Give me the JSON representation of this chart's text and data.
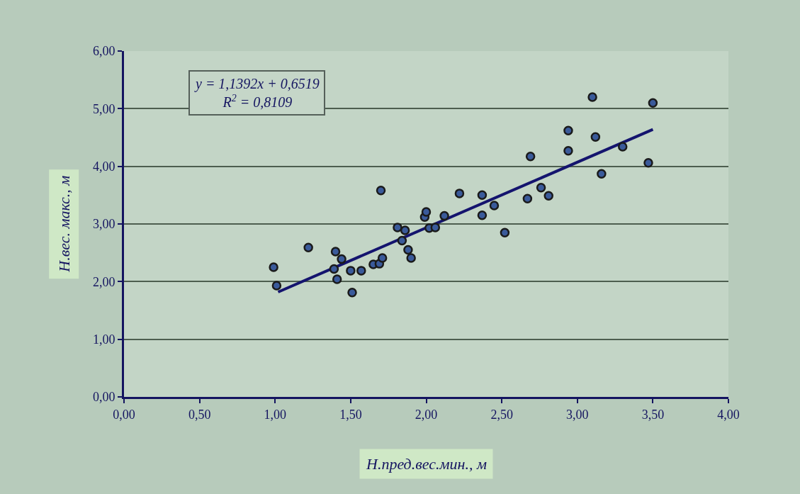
{
  "chart_data": {
    "type": "scatter",
    "xlabel": "Н.пред.вес.мин., м",
    "ylabel": "Н.вес. макс., м",
    "annotations": [
      "y = 1,1392x + 0,6519",
      "R$^{2}$ = 0,8109"
    ],
    "xlim": [
      0,
      4
    ],
    "ylim": [
      0,
      6
    ],
    "xticks": [
      {
        "value": 0,
        "label": "0,00"
      },
      {
        "value": 0.5,
        "label": "0,50"
      },
      {
        "value": 1,
        "label": "1,00"
      },
      {
        "value": 1.5,
        "label": "1,50"
      },
      {
        "value": 2,
        "label": "2,00"
      },
      {
        "value": 2.5,
        "label": "2,50"
      },
      {
        "value": 3,
        "label": "3,00"
      },
      {
        "value": 3.5,
        "label": "3,50"
      },
      {
        "value": 4,
        "label": "4,00"
      }
    ],
    "yticks": [
      {
        "value": 0,
        "label": "0,00"
      },
      {
        "value": 1,
        "label": "1,00"
      },
      {
        "value": 2,
        "label": "2,00"
      },
      {
        "value": 3,
        "label": "3,00"
      },
      {
        "value": 4,
        "label": "4,00"
      },
      {
        "value": 5,
        "label": "5,00"
      },
      {
        "value": 6,
        "label": "6,00"
      }
    ],
    "grid": "y",
    "series": [
      {
        "color": "#3a5a9a",
        "marker": "circle",
        "x": [
          0.99,
          1.01,
          1.22,
          1.4,
          1.39,
          1.41,
          1.44,
          1.5,
          1.57,
          1.51,
          1.65,
          1.69,
          1.71,
          1.7,
          1.81,
          1.86,
          1.84,
          1.88,
          1.9,
          1.99,
          2.0,
          2.02,
          2.06,
          2.12,
          2.22,
          2.37,
          2.37,
          2.45,
          2.52,
          2.67,
          2.69,
          2.76,
          2.81,
          2.94,
          2.94,
          3.1,
          3.12,
          3.16,
          3.3,
          3.47,
          3.5
        ],
        "values": [
          2.25,
          1.93,
          2.59,
          2.52,
          2.22,
          2.04,
          2.39,
          2.19,
          2.19,
          1.81,
          2.3,
          2.31,
          2.41,
          3.58,
          2.94,
          2.89,
          2.71,
          2.55,
          2.41,
          3.12,
          3.21,
          2.93,
          2.94,
          3.14,
          3.53,
          3.5,
          3.15,
          3.32,
          2.85,
          3.44,
          4.17,
          3.63,
          3.49,
          4.27,
          4.62,
          5.2,
          4.51,
          3.87,
          4.34,
          4.06,
          5.1
        ]
      },
      {
        "type": "line",
        "color": "#14146e",
        "marker": "none",
        "x": [
          1.02,
          3.5
        ],
        "values": [
          1.82,
          4.64
        ]
      }
    ]
  }
}
